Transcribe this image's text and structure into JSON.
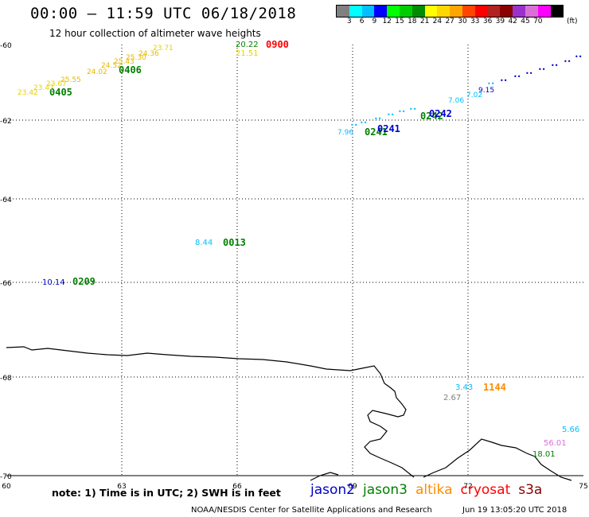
{
  "header": {
    "title": "00:00 – 11:59 UTC 06/18/2018",
    "subtitle": "12 hour collection of altimeter wave heights"
  },
  "legend": {
    "colors": [
      "#808080",
      "#00ffff",
      "#00bfff",
      "#0000ff",
      "#00ff00",
      "#00cd00",
      "#008b00",
      "#ffff00",
      "#ffd700",
      "#ffa500",
      "#ff4500",
      "#ff0000",
      "#b22222",
      "#8b0000",
      "#9932cc",
      "#da70d6",
      "#ff00ff",
      "#000000"
    ],
    "labels": [
      "3",
      "6",
      "9",
      "12",
      "15",
      "18",
      "21",
      "24",
      "27",
      "30",
      "33",
      "36",
      "39",
      "42",
      "45",
      "70"
    ],
    "unit": "(ft)"
  },
  "map": {
    "lon_ticks": [
      "60",
      "63",
      "66",
      "69",
      "72",
      "75"
    ],
    "lat_ticks": [
      "-60",
      "-62",
      "-64",
      "-66",
      "-68",
      "-70"
    ],
    "colors": {
      "jason2": "#0000cc",
      "jason3": "#007f00",
      "altika": "#ff8c00",
      "cryosat": "#ff0000",
      "s3a": "#8b0000"
    },
    "labels": [
      {
        "text": "0405",
        "color": "#007f00"
      },
      {
        "text": "23.42",
        "color": "#e6d200"
      },
      {
        "text": "23.47",
        "color": "#e6d200"
      },
      {
        "text": "23.67",
        "color": "#e6d200"
      },
      {
        "text": "25.55",
        "color": "#e6b800"
      },
      {
        "text": "24.02",
        "color": "#e6b800"
      },
      {
        "text": "24.52",
        "color": "#e6b800"
      },
      {
        "text": "25.43",
        "color": "#e6b800"
      },
      {
        "text": "25.30",
        "color": "#e6b800"
      },
      {
        "text": "24.36",
        "color": "#e6b800"
      },
      {
        "text": "23.71",
        "color": "#e6d200"
      },
      {
        "text": "0406",
        "color": "#007f00"
      },
      {
        "text": "20.22",
        "color": "#007f00"
      },
      {
        "text": "21.51",
        "color": "#e6d200"
      },
      {
        "text": "0900",
        "color": "#ff0000"
      },
      {
        "text": "7.96",
        "color": "#00bfff"
      },
      {
        "text": "0241",
        "color": "#007f00"
      },
      {
        "text": "0241",
        "color": "#0000cc"
      },
      {
        "text": "0242",
        "color": "#007f00"
      },
      {
        "text": "0242",
        "color": "#0000cc"
      },
      {
        "text": "7.06",
        "color": "#00bfff"
      },
      {
        "text": "7.02",
        "color": "#00bfff"
      },
      {
        "text": "9.15",
        "color": "#0000cc"
      },
      {
        "text": "8.44",
        "color": "#00bfff"
      },
      {
        "text": "0013",
        "color": "#007f00"
      },
      {
        "text": "10.14",
        "color": "#0000cc"
      },
      {
        "text": "0209",
        "color": "#007f00"
      },
      {
        "text": "3.43",
        "color": "#00bfff"
      },
      {
        "text": "1144",
        "color": "#ff8c00"
      },
      {
        "text": "2.67",
        "color": "#808080"
      },
      {
        "text": "5.66",
        "color": "#00bfff"
      },
      {
        "text": "56.01",
        "color": "#da70d6"
      },
      {
        "text": "18.01",
        "color": "#007f00"
      }
    ]
  },
  "footer": {
    "note": "note: 1) Time is in UTC; 2) SWH is in feet",
    "satellites": [
      {
        "name": "jason2",
        "color": "#0000cc"
      },
      {
        "name": "jason3",
        "color": "#007f00"
      },
      {
        "name": "altika",
        "color": "#ff8c00"
      },
      {
        "name": "cryosat",
        "color": "#ff0000"
      },
      {
        "name": "s3a",
        "color": "#8b0000"
      }
    ],
    "credit": "NOAA/NESDIS Center for Satellite Applications and Research",
    "timestamp": "Jun 19 13:05:20 UTC 2018"
  }
}
